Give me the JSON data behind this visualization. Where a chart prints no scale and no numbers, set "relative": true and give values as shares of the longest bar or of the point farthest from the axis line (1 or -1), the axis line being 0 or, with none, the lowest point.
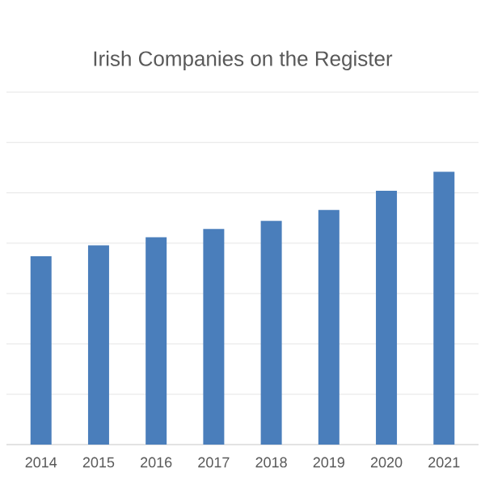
{
  "chart_data": {
    "type": "bar",
    "title": "Irish Companies on the Register",
    "categories": [
      "2014",
      "2015",
      "2016",
      "2017",
      "2018",
      "2019",
      "2020",
      "2021"
    ],
    "values": [
      0.69,
      0.73,
      0.76,
      0.79,
      0.82,
      0.86,
      0.93,
      1
    ],
    "color": "#4a7ebb",
    "relative": true,
    "grid": "y"
  }
}
